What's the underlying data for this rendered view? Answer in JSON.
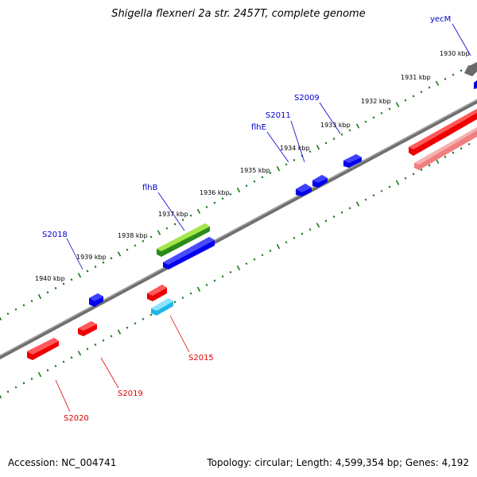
{
  "title": "Shigella flexneri 2a str. 2457T, complete genome",
  "footer": {
    "accession": "Accession: NC_004741",
    "topology": "Topology: circular; Length: 4,599,354 bp; Genes: 4,192"
  },
  "scale_labels": [
    "1930 kbp",
    "1931 kbp",
    "1932 kbp",
    "1933 kbp",
    "1934 kbp",
    "1935 kbp",
    "1936 kbp",
    "1937 kbp",
    "1938 kbp",
    "1939 kbp",
    "1940 kbp"
  ],
  "gene_labels_top": [
    "yecM",
    "S2009",
    "S2011",
    "flhE",
    "flhB",
    "S2018"
  ],
  "gene_labels_bottom": [
    "S2015",
    "S2019",
    "S2020"
  ],
  "colors": {
    "forward_gene": "#0000ee",
    "forward_gene_top": "#3a3aff",
    "reverse_gene": "#ee0000",
    "reverse_gene_top": "#ff5050",
    "reverse_pseudo": "#f08080",
    "rna_gene": "#1fb6e8",
    "cds_green_dark": "#2a8a1a",
    "cds_green_light": "#a6e64c",
    "backbone": "#7a7a7a",
    "tick": "#1a7a1a",
    "label_forward": "#0000cc",
    "label_reverse": "#dd0000"
  }
}
